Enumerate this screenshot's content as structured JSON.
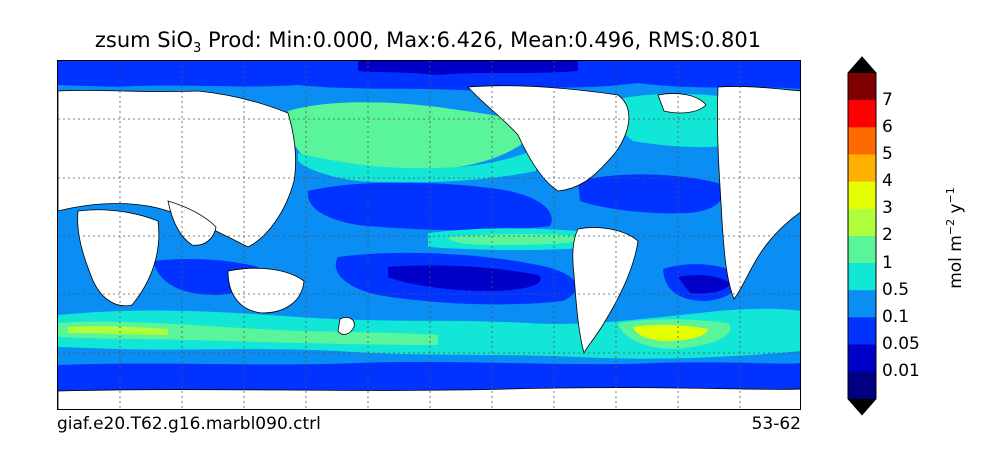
{
  "title": {
    "prefix": "zsum SiO",
    "subscript": "3",
    "suffix": "  Prod: Min:0.000, Max:6.426, Mean:0.496, RMS:0.801"
  },
  "footer": {
    "case_name": "giaf.e20.T62.g16.marbl090.ctrl",
    "years": "53-62"
  },
  "colorbar": {
    "labels": [
      "7",
      "6",
      "5",
      "4",
      "3",
      "2",
      "1",
      "0.5",
      "0.1",
      "0.05",
      "0.01"
    ],
    "colors_top_to_bottom": [
      "#7f0000",
      "#ff0000",
      "#ff6a00",
      "#ffb000",
      "#e6ff00",
      "#b0ff3a",
      "#5af59a",
      "#12e6d6",
      "#0a8ef4",
      "#0033ff",
      "#0000c8",
      "#000080"
    ],
    "arrow_color": "#000000",
    "units": {
      "base": "mol m",
      "exp1": "−2",
      "mid": " y",
      "exp2": "−1"
    }
  },
  "map": {
    "land_color": "#ffffff",
    "coast_color": "#000000",
    "grid": true,
    "grid_style": "dotted"
  }
}
